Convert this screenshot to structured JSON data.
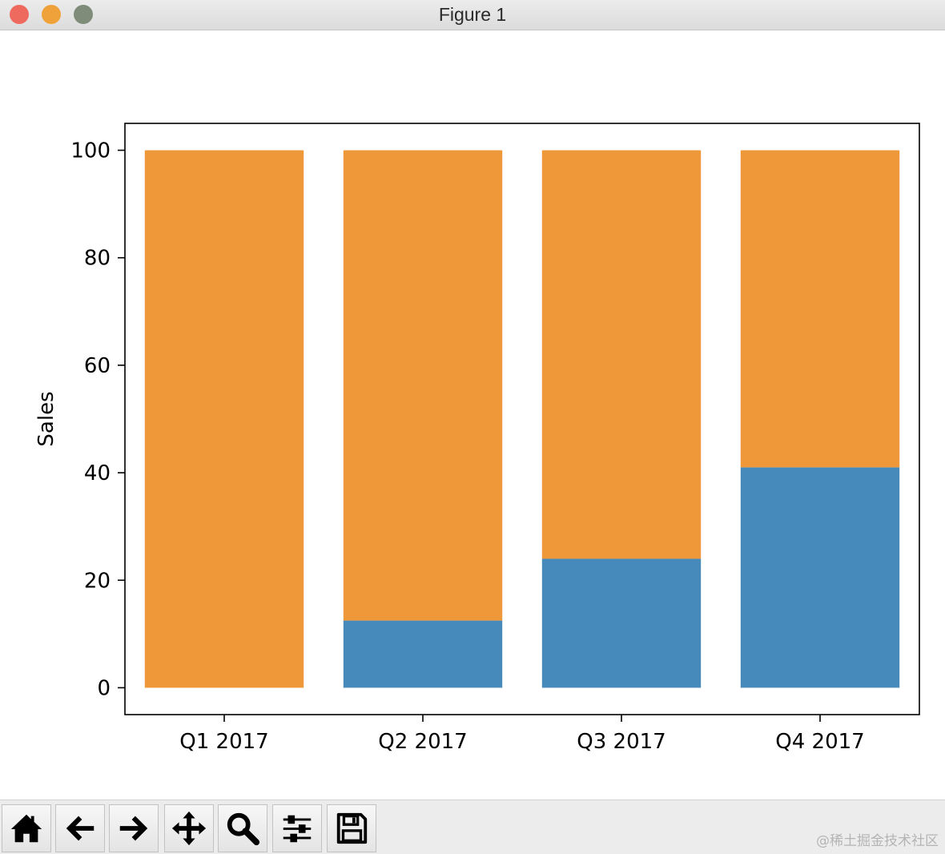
{
  "window": {
    "title": "Figure 1"
  },
  "toolbar": {
    "buttons": [
      {
        "name": "home-icon"
      },
      {
        "name": "back-arrow-icon"
      },
      {
        "name": "forward-arrow-icon"
      },
      {
        "name": "pan-move-icon"
      },
      {
        "name": "zoom-magnifier-icon"
      },
      {
        "name": "configure-subplots-icon"
      },
      {
        "name": "save-floppy-icon"
      }
    ]
  },
  "watermark": "@稀土掘金技术社区",
  "chart_data": {
    "type": "bar",
    "stacked": true,
    "categories": [
      "Q1 2017",
      "Q2 2017",
      "Q3 2017",
      "Q4 2017"
    ],
    "series": [
      {
        "values": [
          0,
          12.5,
          24,
          41
        ],
        "color": "#4689bb"
      },
      {
        "values": [
          100,
          87.5,
          76,
          59
        ],
        "color": "#ef983a"
      }
    ],
    "xlabel": "",
    "ylabel": "Sales",
    "ylim": [
      -5,
      105
    ],
    "yticks": [
      0,
      20,
      40,
      60,
      80,
      100
    ],
    "grid": false
  }
}
